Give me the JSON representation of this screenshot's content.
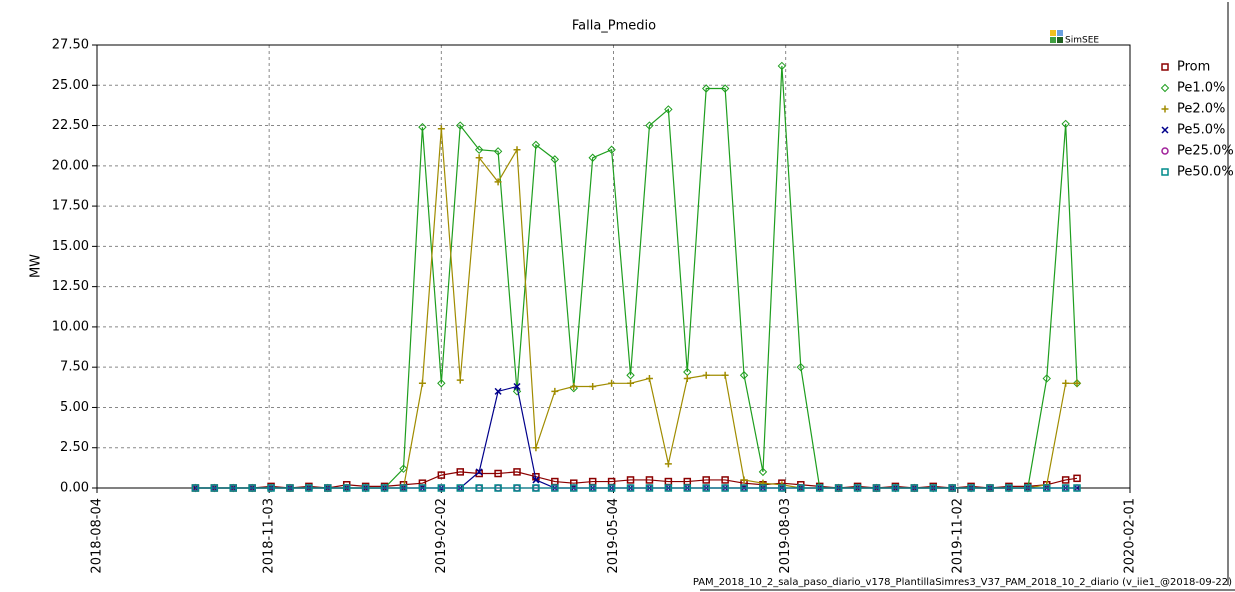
{
  "chart_data": {
    "type": "line",
    "title": "Falla_Pmedio",
    "y_label": "MW",
    "logo": "SimSEE",
    "footer": "PAM_2018_10_2_sala_paso_diario_v178_PlantillaSimres3_V37_PAM_2018_10_2_diario (v_iie1_@2018-09-22)",
    "x": [
      "2018-09-25",
      "2018-10-05",
      "2018-10-15",
      "2018-10-25",
      "2018-11-04",
      "2018-11-14",
      "2018-11-24",
      "2018-12-04",
      "2018-12-14",
      "2018-12-24",
      "2019-01-03",
      "2019-01-13",
      "2019-01-23",
      "2019-02-02",
      "2019-02-12",
      "2019-02-22",
      "2019-03-04",
      "2019-03-14",
      "2019-03-24",
      "2019-04-03",
      "2019-04-13",
      "2019-04-23",
      "2019-05-03",
      "2019-05-13",
      "2019-05-23",
      "2019-06-02",
      "2019-06-12",
      "2019-06-22",
      "2019-07-02",
      "2019-07-12",
      "2019-07-22",
      "2019-08-01",
      "2019-08-11",
      "2019-08-21",
      "2019-08-31",
      "2019-09-10",
      "2019-09-20",
      "2019-09-30",
      "2019-10-10",
      "2019-10-20",
      "2019-10-30",
      "2019-11-09",
      "2019-11-19",
      "2019-11-29",
      "2019-12-09",
      "2019-12-19",
      "2019-12-29",
      "2020-01-04"
    ],
    "xlim": [
      "2018-08-04",
      "2020-02-01"
    ],
    "xticks": [
      "2018-08-04",
      "2018-11-03",
      "2019-02-02",
      "2019-05-04",
      "2019-08-03",
      "2019-11-02",
      "2020-02-01"
    ],
    "ylim": [
      0,
      27.5
    ],
    "yticks": [
      {
        "value": 0,
        "label": "0.00"
      },
      {
        "value": 2.5,
        "label": "2.50"
      },
      {
        "value": 5,
        "label": "5.00"
      },
      {
        "value": 7.5,
        "label": "7.50"
      },
      {
        "value": 10,
        "label": "10.00"
      },
      {
        "value": 12.5,
        "label": "12.50"
      },
      {
        "value": 15,
        "label": "15.00"
      },
      {
        "value": 17.5,
        "label": "17.50"
      },
      {
        "value": 20,
        "label": "20.00"
      },
      {
        "value": 22.5,
        "label": "22.50"
      },
      {
        "value": 25,
        "label": "25.00"
      },
      {
        "value": 27.5,
        "label": "27.50"
      }
    ],
    "grid": true,
    "series": [
      {
        "name": "Prom",
        "color": "#8b0000",
        "marker": "square",
        "values": [
          0,
          0,
          0,
          0,
          0.1,
          0,
          0.1,
          0,
          0.2,
          0.1,
          0.1,
          0.2,
          0.3,
          0.8,
          1.0,
          0.9,
          0.9,
          1.0,
          0.7,
          0.4,
          0.3,
          0.4,
          0.4,
          0.5,
          0.5,
          0.4,
          0.4,
          0.5,
          0.5,
          0.3,
          0.2,
          0.3,
          0.2,
          0.1,
          0,
          0.1,
          0,
          0.1,
          0,
          0.1,
          0,
          0.1,
          0,
          0.1,
          0.1,
          0.2,
          0.5,
          0.6
        ]
      },
      {
        "name": "Pe1.0%",
        "color": "#1e9e1e",
        "marker": "diamond",
        "values": [
          0,
          0,
          0,
          0,
          0,
          0,
          0,
          0,
          0,
          0,
          0,
          1.2,
          22.4,
          6.5,
          22.5,
          21,
          20.9,
          6,
          21.3,
          20.4,
          6.2,
          20.5,
          21,
          7,
          22.5,
          23.5,
          7.2,
          24.8,
          24.8,
          7,
          1,
          26.2,
          7.5,
          0,
          0,
          0,
          0,
          0,
          0,
          0,
          0,
          0,
          0,
          0,
          0,
          6.8,
          22.6,
          6.5
        ]
      },
      {
        "name": "Pe2.0%",
        "color": "#a08c00",
        "marker": "plus",
        "values": [
          0,
          0,
          0,
          0,
          0,
          0,
          0,
          0,
          0,
          0,
          0,
          0,
          6.5,
          22.3,
          6.7,
          20.5,
          19,
          21,
          2.5,
          6,
          6.3,
          6.3,
          6.5,
          6.5,
          6.8,
          1.5,
          6.8,
          7,
          7,
          0.5,
          0.3,
          0.2,
          0,
          0,
          0,
          0,
          0,
          0,
          0,
          0,
          0,
          0,
          0,
          0,
          0,
          0.2,
          6.5,
          6.5
        ]
      },
      {
        "name": "Pe5.0%",
        "color": "#00008b",
        "marker": "cross",
        "values": [
          0,
          0,
          0,
          0,
          0,
          0,
          0,
          0,
          0,
          0,
          0,
          0,
          0,
          0,
          0,
          1,
          6,
          6.3,
          0.5,
          0,
          0,
          0,
          0,
          0,
          0,
          0,
          0,
          0,
          0,
          0,
          0,
          0,
          0,
          0,
          0,
          0,
          0,
          0,
          0,
          0,
          0,
          0,
          0,
          0,
          0,
          0,
          0,
          0
        ]
      },
      {
        "name": "Pe25.0%",
        "color": "#a0209a",
        "marker": "circle",
        "values": [
          0,
          0,
          0,
          0,
          0,
          0,
          0,
          0,
          0,
          0,
          0,
          0,
          0,
          0,
          0,
          0,
          0,
          0,
          0,
          0,
          0,
          0,
          0,
          0,
          0,
          0,
          0,
          0,
          0,
          0,
          0,
          0,
          0,
          0,
          0,
          0,
          0,
          0,
          0,
          0,
          0,
          0,
          0,
          0,
          0,
          0,
          0,
          0
        ]
      },
      {
        "name": "Pe50.0%",
        "color": "#008b8b",
        "marker": "square",
        "values": [
          0,
          0,
          0,
          0,
          0,
          0,
          0,
          0,
          0,
          0,
          0,
          0,
          0,
          0,
          0,
          0,
          0,
          0,
          0,
          0,
          0,
          0,
          0,
          0,
          0,
          0,
          0,
          0,
          0,
          0,
          0,
          0,
          0,
          0,
          0,
          0,
          0,
          0,
          0,
          0,
          0,
          0,
          0,
          0,
          0,
          0,
          0,
          0
        ]
      }
    ]
  }
}
